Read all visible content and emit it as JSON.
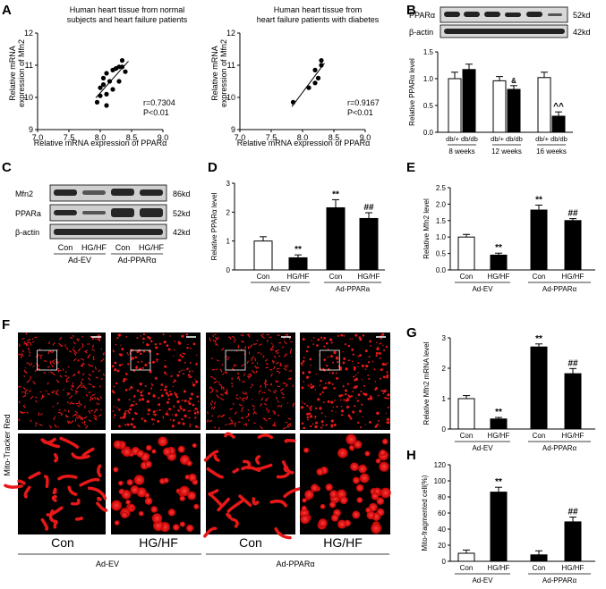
{
  "panel_labels": {
    "A": "A",
    "B": "B",
    "C": "C",
    "D": "D",
    "E": "E",
    "F": "F",
    "G": "G",
    "H": "H"
  },
  "colors": {
    "micrograph_red": "#e81818",
    "micrograph_bg": "#000000",
    "bar_open": "#ffffff",
    "bar_filled": "#000000"
  },
  "panelA": {
    "left": {
      "title_line1": "Human heart tissue from normal",
      "title_line2": "subjects and heart failure patients",
      "ylabel_line1": "Relative mRNA",
      "ylabel_line2": "expression of Mfn2",
      "xlabel": "Relative mRNA expression of PPARα",
      "stat_r": "r=0.7304",
      "stat_p": "P<0.01"
    },
    "right": {
      "title_line1": "Human heart tissue from",
      "title_line2": "heart failure patients with diabetes",
      "ylabel_line1": "Relative mRNA",
      "ylabel_line2": "expression of Mfn2",
      "xlabel": "Relative mRNA expression of PPARα",
      "stat_r": "r=0.9167",
      "stat_p": "P<0.01"
    }
  },
  "panelB": {
    "blot_labels": [
      "PPARα",
      "β-actin"
    ],
    "blot_sizes": [
      "52kd",
      "42kd"
    ],
    "ylabel": "Relative PPARα level",
    "groups": [
      "8 weeks",
      "12 weeks",
      "16 weeks"
    ],
    "group_pair": [
      "db/+",
      "db/db"
    ],
    "sig": [
      "&",
      "^^"
    ]
  },
  "panelC": {
    "blot_labels": [
      "Mfn2",
      "PPARa",
      "β-actin"
    ],
    "blot_sizes": [
      "86kd",
      "52kd",
      "42kd"
    ],
    "lanes": [
      "Con",
      "HG/HF",
      "Con",
      "HG/HF"
    ],
    "groups": [
      "Ad-EV",
      "Ad-PPARα"
    ]
  },
  "panelF": {
    "ylabel": "Mito-Tracker Red",
    "conditions": [
      "Con",
      "HG/HF",
      "Con",
      "HG/HF"
    ],
    "groups": [
      "Ad-EV",
      "Ad-PPARα"
    ]
  },
  "chart_data": [
    {
      "id": "A-left",
      "type": "scatter",
      "title": "Human heart tissue from normal subjects and heart failure patients",
      "xlabel": "Relative mRNA expression of PPARα",
      "ylabel": "Relative mRNA expression of Mfn2",
      "xlim": [
        7.0,
        9.0
      ],
      "ylim": [
        9,
        12
      ],
      "xticks": [
        "7.0",
        "7.5",
        "8.0",
        "8.5",
        "9.0"
      ],
      "yticks": [
        "9",
        "10",
        "11",
        "12"
      ],
      "x": [
        7.95,
        8.0,
        8.05,
        8.1,
        8.1,
        8.15,
        8.2,
        8.2,
        8.25,
        8.3,
        8.3,
        8.35,
        8.35,
        8.4,
        8.1,
        8.0,
        8.05
      ],
      "y": [
        9.85,
        10.05,
        10.4,
        10.1,
        10.75,
        10.5,
        10.85,
        10.25,
        10.9,
        10.5,
        10.95,
        10.95,
        11.15,
        10.8,
        9.75,
        10.3,
        10.6
      ],
      "annotations": [
        "r=0.7304",
        "P<0.01"
      ]
    },
    {
      "id": "A-right",
      "type": "scatter",
      "title": "Human heart tissue from heart failure patients with diabetes",
      "xlabel": "Relative mRNA expression of PPARα",
      "ylabel": "Relative mRNA expression of Mfn2",
      "xlim": [
        7.0,
        9.0
      ],
      "ylim": [
        9,
        12
      ],
      "xticks": [
        "7.0",
        "7.5",
        "8.0",
        "8.5",
        "9.0"
      ],
      "yticks": [
        "9",
        "10",
        "11",
        "12"
      ],
      "x": [
        7.85,
        8.1,
        8.2,
        8.2,
        8.25,
        8.3,
        8.3
      ],
      "y": [
        9.85,
        10.3,
        10.45,
        10.85,
        10.6,
        11.0,
        11.15
      ],
      "annotations": [
        "r=0.9167",
        "P<0.01"
      ]
    },
    {
      "id": "B",
      "type": "bar",
      "ylabel": "Relative PPARα level",
      "ylim": [
        0,
        1.5
      ],
      "yticks": [
        "0.0",
        "0.5",
        "1.0",
        "1.5"
      ],
      "categories": [
        "db/+",
        "db/db",
        "db/+",
        "db/db",
        "db/+",
        "db/db"
      ],
      "group_labels": [
        "8 weeks",
        "12 weeks",
        "16 weeks"
      ],
      "values": [
        1.0,
        1.17,
        0.96,
        0.8,
        1.02,
        0.3
      ],
      "errors": [
        0.12,
        0.1,
        0.08,
        0.07,
        0.1,
        0.08
      ],
      "fill": [
        "open",
        "filled",
        "open",
        "filled",
        "open",
        "filled"
      ],
      "sig": [
        "",
        "",
        "",
        "&",
        "",
        "^^"
      ]
    },
    {
      "id": "D",
      "type": "bar",
      "ylabel": "Relative PPARα level",
      "ylim": [
        0,
        3
      ],
      "yticks": [
        "0",
        "1",
        "2",
        "3"
      ],
      "categories": [
        "Con",
        "HG/HF",
        "Con",
        "HG/HF"
      ],
      "group_labels": [
        "Ad-EV",
        "Ad-PPARa"
      ],
      "values": [
        1.0,
        0.42,
        2.15,
        1.78
      ],
      "errors": [
        0.15,
        0.1,
        0.28,
        0.2
      ],
      "fill": [
        "open",
        "filled",
        "filled",
        "filled"
      ],
      "sig": [
        "",
        "**",
        "**",
        "##"
      ]
    },
    {
      "id": "E",
      "type": "bar",
      "ylabel": "Relative Mfn2 level",
      "ylim": [
        0,
        2.5
      ],
      "yticks": [
        "0.0",
        "0.5",
        "1.0",
        "1.5",
        "2.0",
        "2.5"
      ],
      "categories": [
        "Con",
        "HG/HF",
        "Con",
        "HG/HF"
      ],
      "group_labels": [
        "Ad-EV",
        "Ad-PPARα"
      ],
      "values": [
        1.0,
        0.45,
        1.82,
        1.5
      ],
      "errors": [
        0.08,
        0.06,
        0.15,
        0.06
      ],
      "fill": [
        "open",
        "filled",
        "filled",
        "filled"
      ],
      "sig": [
        "",
        "**",
        "**",
        "##"
      ]
    },
    {
      "id": "G",
      "type": "bar",
      "ylabel": "Relative Mfn2 mRNA level",
      "ylim": [
        0,
        3
      ],
      "yticks": [
        "0",
        "1",
        "2",
        "3"
      ],
      "categories": [
        "Con",
        "HG/HF",
        "Con",
        "HG/HF"
      ],
      "group_labels": [
        "Ad-EV",
        "Ad-PPARα"
      ],
      "values": [
        1.0,
        0.33,
        2.7,
        1.82
      ],
      "errors": [
        0.1,
        0.05,
        0.1,
        0.17
      ],
      "fill": [
        "open",
        "filled",
        "filled",
        "filled"
      ],
      "sig": [
        "",
        "**",
        "**",
        "##"
      ]
    },
    {
      "id": "H",
      "type": "bar",
      "ylabel": "Mito-fragmented cell(%)",
      "ylim": [
        0,
        120
      ],
      "yticks": [
        "0",
        "20",
        "40",
        "60",
        "80",
        "100",
        "120"
      ],
      "categories": [
        "Con",
        "HG/HF",
        "Con",
        "HG/HF"
      ],
      "group_labels": [
        "Ad-EV",
        "Ad-PPARα"
      ],
      "values": [
        10,
        86,
        8,
        49
      ],
      "errors": [
        4,
        6,
        5,
        6
      ],
      "fill": [
        "open",
        "filled",
        "filled",
        "filled"
      ],
      "sig": [
        "",
        "**",
        "",
        "##"
      ]
    }
  ]
}
